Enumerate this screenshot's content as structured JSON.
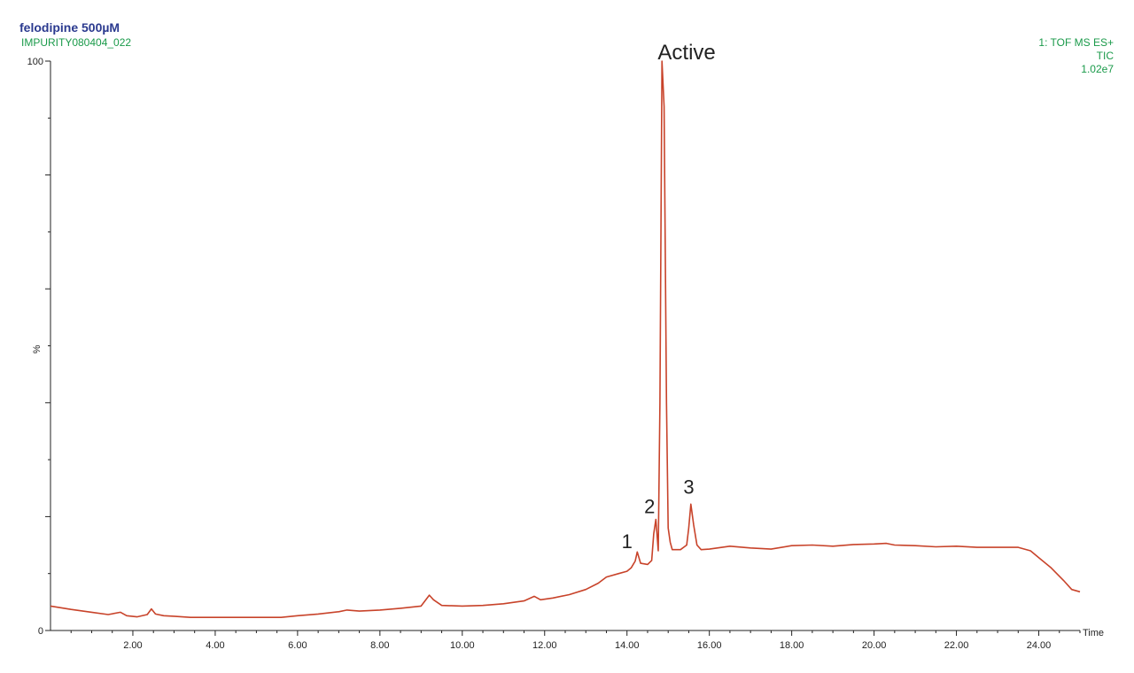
{
  "header": {
    "title": "felodipine 500µM",
    "subtitle": "IMPURITY080404_022",
    "right_lines": [
      "1: TOF MS ES+",
      "TIC",
      "1.02e7"
    ]
  },
  "colors": {
    "trace": "#c8432a",
    "title": "#2b3a8f",
    "meta": "#1a9a4a",
    "axis": "#222222"
  },
  "chart_data": {
    "type": "line",
    "title": "felodipine 500µM",
    "xlabel": "Time",
    "ylabel": "%",
    "xlim": [
      0,
      25
    ],
    "ylim": [
      0,
      100
    ],
    "grid": false,
    "x_ticks": [
      2,
      4,
      6,
      8,
      10,
      12,
      14,
      16,
      18,
      20,
      22,
      24
    ],
    "x_tick_labels": [
      "2.00",
      "4.00",
      "6.00",
      "8.00",
      "10.00",
      "12.00",
      "14.00",
      "16.00",
      "18.00",
      "20.00",
      "22.00",
      "24.00"
    ],
    "y_tick_labels": [
      {
        "value": 0,
        "label": "0"
      },
      {
        "value": 50,
        "label": "%"
      },
      {
        "value": 100,
        "label": "100"
      }
    ],
    "series": [
      {
        "points": [
          [
            0.0,
            4.3
          ],
          [
            0.5,
            3.7
          ],
          [
            1.0,
            3.2
          ],
          [
            1.4,
            2.8
          ],
          [
            1.7,
            3.2
          ],
          [
            1.85,
            2.6
          ],
          [
            2.1,
            2.4
          ],
          [
            2.35,
            2.8
          ],
          [
            2.45,
            3.8
          ],
          [
            2.55,
            2.9
          ],
          [
            2.75,
            2.6
          ],
          [
            3.0,
            2.5
          ],
          [
            3.4,
            2.3
          ],
          [
            4.0,
            2.3
          ],
          [
            5.0,
            2.3
          ],
          [
            5.6,
            2.3
          ],
          [
            6.0,
            2.6
          ],
          [
            6.5,
            2.9
          ],
          [
            7.0,
            3.3
          ],
          [
            7.2,
            3.6
          ],
          [
            7.5,
            3.4
          ],
          [
            8.0,
            3.6
          ],
          [
            8.5,
            3.9
          ],
          [
            9.0,
            4.3
          ],
          [
            9.2,
            6.2
          ],
          [
            9.3,
            5.4
          ],
          [
            9.5,
            4.4
          ],
          [
            10.0,
            4.3
          ],
          [
            10.5,
            4.4
          ],
          [
            11.0,
            4.7
          ],
          [
            11.5,
            5.2
          ],
          [
            11.75,
            6.0
          ],
          [
            11.9,
            5.4
          ],
          [
            12.2,
            5.7
          ],
          [
            12.6,
            6.3
          ],
          [
            13.0,
            7.2
          ],
          [
            13.3,
            8.3
          ],
          [
            13.5,
            9.4
          ],
          [
            13.8,
            10.0
          ],
          [
            14.0,
            10.4
          ],
          [
            14.1,
            11.0
          ],
          [
            14.2,
            12.2
          ],
          [
            14.25,
            13.8
          ],
          [
            14.33,
            11.8
          ],
          [
            14.5,
            11.6
          ],
          [
            14.6,
            12.3
          ],
          [
            14.65,
            17.0
          ],
          [
            14.7,
            19.5
          ],
          [
            14.76,
            14.0
          ],
          [
            14.8,
            40.0
          ],
          [
            14.85,
            100.0
          ],
          [
            14.9,
            92.0
          ],
          [
            14.96,
            40.0
          ],
          [
            15.0,
            18.0
          ],
          [
            15.05,
            15.5
          ],
          [
            15.1,
            14.2
          ],
          [
            15.3,
            14.2
          ],
          [
            15.45,
            15.0
          ],
          [
            15.5,
            18.0
          ],
          [
            15.55,
            22.2
          ],
          [
            15.62,
            18.5
          ],
          [
            15.7,
            15.0
          ],
          [
            15.8,
            14.2
          ],
          [
            16.0,
            14.3
          ],
          [
            16.5,
            14.8
          ],
          [
            17.0,
            14.5
          ],
          [
            17.5,
            14.3
          ],
          [
            18.0,
            14.9
          ],
          [
            18.5,
            15.0
          ],
          [
            19.0,
            14.8
          ],
          [
            19.5,
            15.1
          ],
          [
            20.0,
            15.2
          ],
          [
            20.3,
            15.3
          ],
          [
            20.5,
            15.0
          ],
          [
            21.0,
            14.9
          ],
          [
            21.5,
            14.7
          ],
          [
            22.0,
            14.8
          ],
          [
            22.5,
            14.6
          ],
          [
            23.0,
            14.6
          ],
          [
            23.5,
            14.6
          ],
          [
            23.8,
            14.0
          ],
          [
            24.0,
            12.8
          ],
          [
            24.3,
            11.0
          ],
          [
            24.6,
            8.8
          ],
          [
            24.8,
            7.2
          ],
          [
            25.0,
            6.8
          ]
        ]
      }
    ],
    "annotations": [
      {
        "text": "1",
        "x": 14.0,
        "y": 14.5
      },
      {
        "text": "2",
        "x": 14.55,
        "y": 20.6
      },
      {
        "text": "Active",
        "x": 15.45,
        "y": 100.0
      },
      {
        "text": "3",
        "x": 15.5,
        "y": 24.0
      }
    ]
  }
}
